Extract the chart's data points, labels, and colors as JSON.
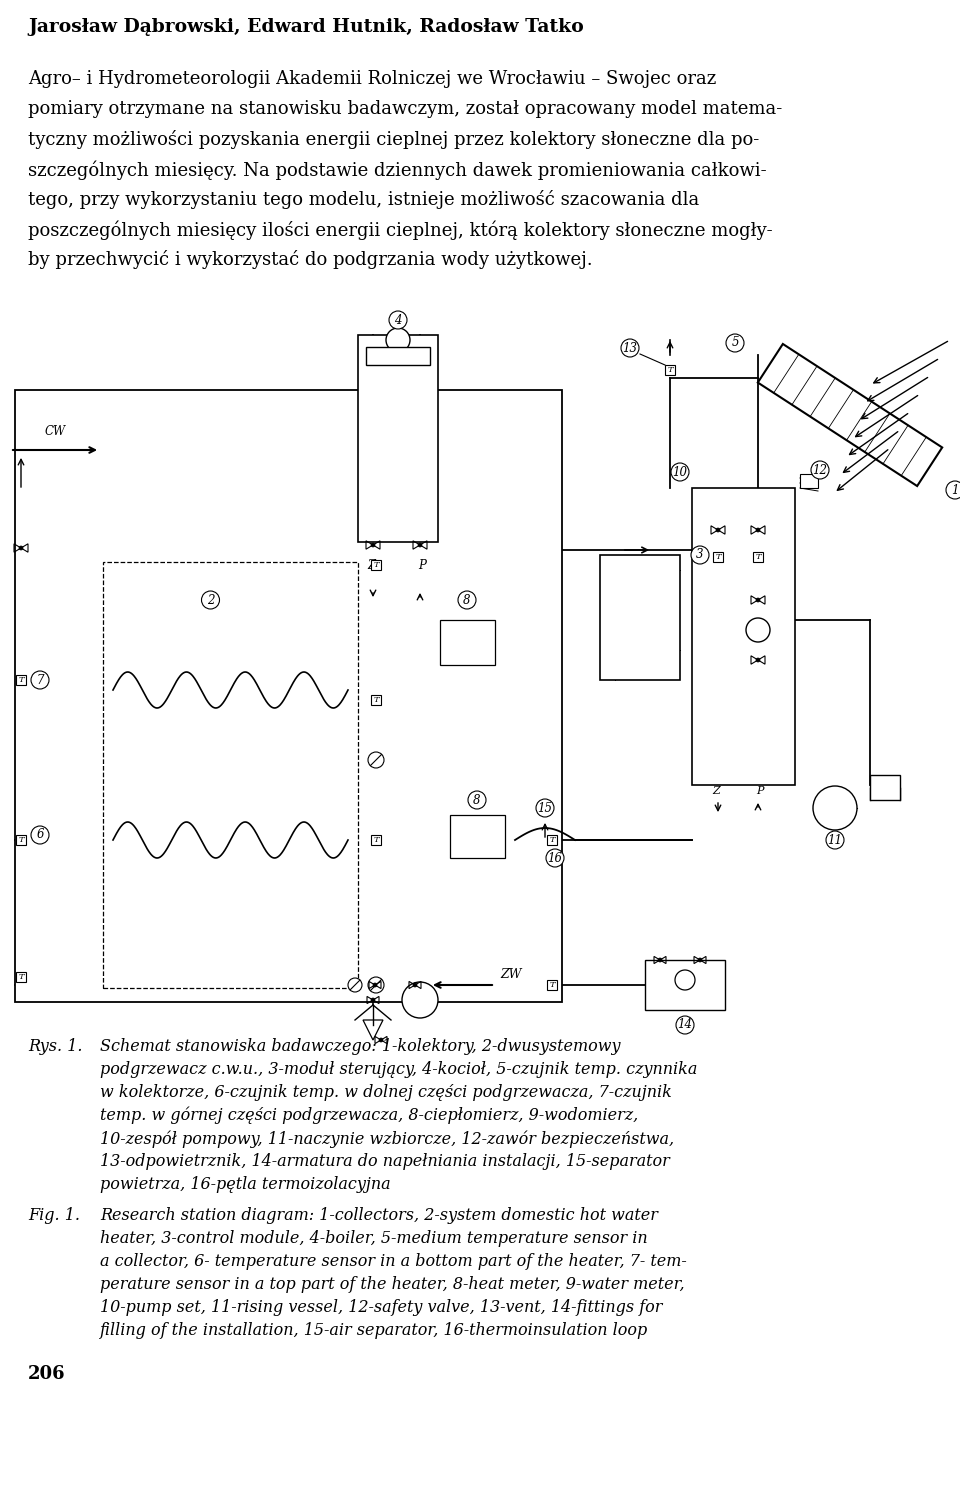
{
  "title_line": "Jarosław Dąbrowski, Edward Hutnik, Radosław Tatko",
  "para_lines": [
    "Agro– i Hydrometeorologii Akademii Rolniczej we Wrocławiu – Swojec oraz",
    "pomiary otrzymane na stanowisku badawczym, został opracowany model matema-",
    "tyczny możliwości pozyskania energii cieplnej przez kolektory słoneczne dla po-",
    "szczególnych miesięcy. Na podstawie dziennych dawek promieniowania całkowi-",
    "tego, przy wykorzystaniu tego modelu, istnieje możliwość szacowania dla",
    "poszczególnych miesięcy ilości energii cieplnej, którą kolektory słoneczne mogły-",
    "by przechwycić i wykorzystać do podgrzania wody użytkowej."
  ],
  "caption_rys": "Rys. 1.",
  "cap_rys_lines": [
    "Schemat stanowiska badawczego: 1-kolektory, 2-dwusystemowy",
    "podgrzewacz c.w.u., 3-moduł sterujący, 4-kocioł, 5-czujnik temp. czynnika",
    "w kolektorze, 6-czujnik temp. w dolnej części podgrzewacza, 7-czujnik",
    "temp. w górnej części podgrzewacza, 8-ciepłomierz, 9-wodomierz,",
    "10-zespół pompowy, 11-naczynie wzbiorcze, 12-zawór bezpieczeństwa,",
    "13-odpowietrznik, 14-armatura do napełniania instalacji, 15-separator",
    "powietrza, 16-pętla termoizolacyjna"
  ],
  "caption_fig": "Fig. 1.",
  "cap_fig_lines": [
    "Research station diagram: 1-collectors, 2-system domestic hot water",
    "heater, 3-control module, 4-boiler, 5-medium temperature sensor in",
    "a collector, 6- temperature sensor in a bottom part of the heater, 7- tem-",
    "perature sensor in a top part of the heater, 8-heat meter, 9-water meter,",
    "10-pump set, 11-rising vessel, 12-safety valve, 13-vent, 14-fittings for",
    "filling of the installation, 15-air separator, 16-thermoinsulation loop"
  ],
  "page_number": "206"
}
